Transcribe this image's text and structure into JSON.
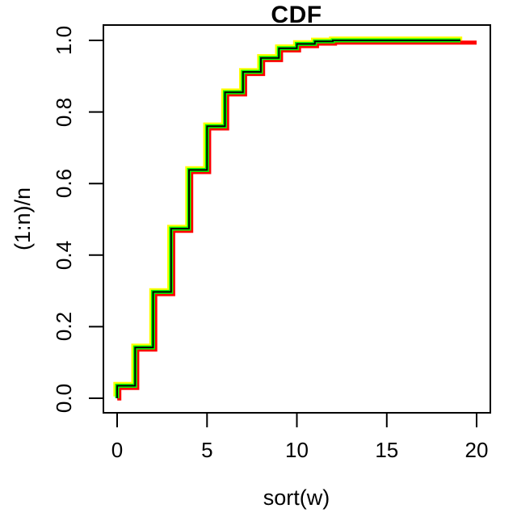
{
  "title": "CDF",
  "x_axis": {
    "label": "sort(w)",
    "tick_labels": [
      "0",
      "5",
      "10",
      "15",
      "20"
    ]
  },
  "y_axis": {
    "label": "(1:n)/n",
    "tick_labels": [
      "0.0",
      "0.2",
      "0.4",
      "0.6",
      "0.8",
      "1.0"
    ]
  },
  "chart_data": {
    "type": "line",
    "subtype": "step-cdf",
    "title": "CDF",
    "xlabel": "sort(w)",
    "ylabel": "(1:n)/n",
    "xlim": [
      0,
      20
    ],
    "ylim": [
      0,
      1
    ],
    "x_ticks": [
      0,
      5,
      10,
      15,
      20
    ],
    "y_ticks": [
      0.0,
      0.2,
      0.4,
      0.6,
      0.8,
      1.0
    ],
    "grid": false,
    "legend": false,
    "frame_color": "#000000",
    "step_x": [
      0,
      1,
      2,
      3,
      4,
      5,
      6,
      7,
      8,
      9,
      10,
      11,
      12
    ],
    "step_values": [
      0.035,
      0.142,
      0.297,
      0.474,
      0.638,
      0.76,
      0.855,
      0.912,
      0.951,
      0.978,
      0.99,
      0.997,
      1.0
    ],
    "series": [
      {
        "name": "sample-red",
        "color": "#ff0000",
        "line_width": 5,
        "dx": 0.12,
        "dy": -0.006,
        "end_x": 20.0
      },
      {
        "name": "sample-yellow",
        "color": "#ffff00",
        "line_width": 5,
        "dx": -0.1,
        "dy": 0.005,
        "end_x": 19.2
      },
      {
        "name": "sample-green",
        "color": "#00ff00",
        "line_width": 5,
        "dx": 0.0,
        "dy": 0.0,
        "end_x": 19.1
      },
      {
        "name": "overlay-black",
        "color": "#000000",
        "line_width": 2,
        "dx": 0.0,
        "dy": 0.0,
        "end_x": 19.1
      }
    ]
  }
}
